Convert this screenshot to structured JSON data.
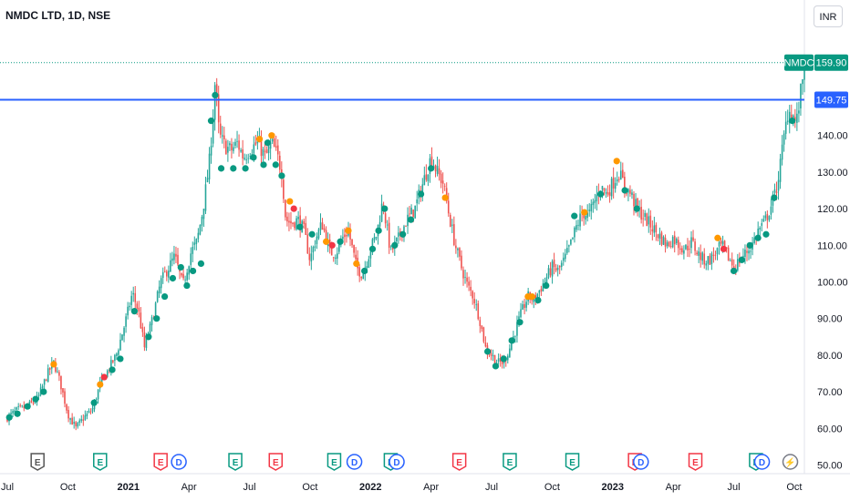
{
  "header": {
    "symbol_title": "NMDC LTD, 1D, NSE",
    "currency_button": "INR"
  },
  "colors": {
    "up": "#26a69a",
    "down": "#ef5350",
    "hline": "#2962ff",
    "price_tag": "#089981",
    "dot_green": "#089981",
    "dot_orange": "#ff9800",
    "dot_red": "#f23645",
    "earn_dark": "#555555",
    "earn_green": "#089981",
    "earn_red": "#f23645",
    "dividend": "#2962ff",
    "split": "#787b86"
  },
  "chart_data": {
    "type": "candlestick",
    "symbol": "NMDC",
    "interval": "1D",
    "exchange": "NSE",
    "currency": "INR",
    "ylim": [
      48,
      163
    ],
    "y_ticks": [
      "160.00",
      "150.00",
      "140.00",
      "130.00",
      "120.00",
      "110.00",
      "100.00",
      "90.00",
      "80.00",
      "70.00",
      "60.00",
      "50.00"
    ],
    "y_tick_values": [
      160,
      150,
      140,
      130,
      120,
      110,
      100,
      90,
      80,
      70,
      60,
      50
    ],
    "x_ticks": [
      {
        "label": "Jul",
        "t": 0.0,
        "year": false
      },
      {
        "label": "Oct",
        "t": 3.0,
        "year": false
      },
      {
        "label": "2021",
        "t": 6.0,
        "year": true
      },
      {
        "label": "Apr",
        "t": 9.0,
        "year": false
      },
      {
        "label": "Jul",
        "t": 12.0,
        "year": false
      },
      {
        "label": "Oct",
        "t": 15.0,
        "year": false
      },
      {
        "label": "2022",
        "t": 18.0,
        "year": true
      },
      {
        "label": "Apr",
        "t": 21.0,
        "year": false
      },
      {
        "label": "Jul",
        "t": 24.0,
        "year": false
      },
      {
        "label": "Oct",
        "t": 27.0,
        "year": false
      },
      {
        "label": "2023",
        "t": 30.0,
        "year": true
      },
      {
        "label": "Apr",
        "t": 33.0,
        "year": false
      },
      {
        "label": "Jul",
        "t": 36.0,
        "year": false
      },
      {
        "label": "Oct",
        "t": 39.0,
        "year": false
      }
    ],
    "t_range": [
      0.0,
      39.5
    ],
    "last_price": {
      "label": "NMDC",
      "value": "159.90",
      "num": 159.9
    },
    "horizontal_line": {
      "value": "149.75",
      "num": 149.75
    },
    "price_path": [
      [
        0.0,
        63
      ],
      [
        0.5,
        65
      ],
      [
        1.0,
        66
      ],
      [
        1.5,
        68
      ],
      [
        2.0,
        75
      ],
      [
        2.3,
        78
      ],
      [
        2.6,
        73
      ],
      [
        3.0,
        64
      ],
      [
        3.4,
        60
      ],
      [
        3.8,
        63
      ],
      [
        4.2,
        65
      ],
      [
        4.6,
        72
      ],
      [
        5.0,
        76
      ],
      [
        5.4,
        80
      ],
      [
        5.8,
        88
      ],
      [
        6.2,
        97
      ],
      [
        6.5,
        92
      ],
      [
        6.8,
        82
      ],
      [
        7.2,
        90
      ],
      [
        7.6,
        100
      ],
      [
        8.0,
        104
      ],
      [
        8.3,
        107
      ],
      [
        8.7,
        99
      ],
      [
        9.1,
        108
      ],
      [
        9.4,
        111
      ],
      [
        9.7,
        120
      ],
      [
        10.0,
        132
      ],
      [
        10.2,
        146
      ],
      [
        10.3,
        155
      ],
      [
        10.5,
        140
      ],
      [
        10.8,
        137
      ],
      [
        11.1,
        136
      ],
      [
        11.4,
        138
      ],
      [
        11.7,
        134
      ],
      [
        12.0,
        136
      ],
      [
        12.4,
        138
      ],
      [
        12.8,
        134
      ],
      [
        13.1,
        138
      ],
      [
        13.4,
        134
      ],
      [
        13.6,
        130
      ],
      [
        13.8,
        117
      ],
      [
        14.1,
        116
      ],
      [
        14.4,
        117
      ],
      [
        14.7,
        114
      ],
      [
        15.0,
        106
      ],
      [
        15.3,
        112
      ],
      [
        15.6,
        116
      ],
      [
        16.0,
        108
      ],
      [
        16.3,
        108
      ],
      [
        16.6,
        112
      ],
      [
        16.9,
        114
      ],
      [
        17.3,
        104
      ],
      [
        17.6,
        102
      ],
      [
        18.0,
        109
      ],
      [
        18.3,
        113
      ],
      [
        18.6,
        122
      ],
      [
        19.0,
        108
      ],
      [
        19.4,
        112
      ],
      [
        19.8,
        117
      ],
      [
        20.2,
        120
      ],
      [
        20.6,
        127
      ],
      [
        21.0,
        134
      ],
      [
        21.3,
        130
      ],
      [
        21.6,
        127
      ],
      [
        21.9,
        118
      ],
      [
        22.2,
        110
      ],
      [
        22.5,
        104
      ],
      [
        22.8,
        99
      ],
      [
        23.1,
        96
      ],
      [
        23.4,
        90
      ],
      [
        23.7,
        82
      ],
      [
        24.0,
        80
      ],
      [
        24.3,
        78
      ],
      [
        24.6,
        78
      ],
      [
        24.9,
        82
      ],
      [
        25.2,
        87
      ],
      [
        25.5,
        92
      ],
      [
        25.8,
        96
      ],
      [
        26.1,
        95
      ],
      [
        26.4,
        98
      ],
      [
        26.7,
        101
      ],
      [
        27.0,
        104
      ],
      [
        27.3,
        103
      ],
      [
        27.6,
        106
      ],
      [
        27.9,
        110
      ],
      [
        28.2,
        115
      ],
      [
        28.5,
        119
      ],
      [
        28.8,
        118
      ],
      [
        29.1,
        122
      ],
      [
        29.4,
        126
      ],
      [
        29.7,
        124
      ],
      [
        30.0,
        127
      ],
      [
        30.3,
        130
      ],
      [
        30.6,
        126
      ],
      [
        30.9,
        124
      ],
      [
        31.2,
        120
      ],
      [
        31.5,
        118
      ],
      [
        31.8,
        116
      ],
      [
        32.1,
        114
      ],
      [
        32.4,
        112
      ],
      [
        32.7,
        110
      ],
      [
        33.0,
        112
      ],
      [
        33.3,
        110
      ],
      [
        33.6,
        109
      ],
      [
        33.9,
        111
      ],
      [
        34.2,
        108
      ],
      [
        34.5,
        106
      ],
      [
        34.8,
        106
      ],
      [
        35.1,
        108
      ],
      [
        35.4,
        110
      ],
      [
        35.7,
        107
      ],
      [
        36.0,
        104
      ],
      [
        36.3,
        106
      ],
      [
        36.6,
        108
      ],
      [
        36.9,
        110
      ],
      [
        37.2,
        114
      ],
      [
        37.5,
        116
      ],
      [
        37.8,
        120
      ],
      [
        38.1,
        125
      ],
      [
        38.3,
        132
      ],
      [
        38.5,
        140
      ],
      [
        38.7,
        147
      ],
      [
        38.9,
        146
      ],
      [
        39.1,
        143
      ],
      [
        39.3,
        151
      ],
      [
        39.5,
        159.9
      ]
    ],
    "dots": [
      {
        "t": 0.1,
        "v": 63,
        "c": "green"
      },
      {
        "t": 0.5,
        "v": 64,
        "c": "green"
      },
      {
        "t": 1.0,
        "v": 66,
        "c": "green"
      },
      {
        "t": 1.4,
        "v": 68,
        "c": "green"
      },
      {
        "t": 1.8,
        "v": 70,
        "c": "green"
      },
      {
        "t": 2.3,
        "v": 77.5,
        "c": "orange"
      },
      {
        "t": 4.3,
        "v": 67,
        "c": "green"
      },
      {
        "t": 4.6,
        "v": 72,
        "c": "orange"
      },
      {
        "t": 4.8,
        "v": 74,
        "c": "red"
      },
      {
        "t": 5.2,
        "v": 76,
        "c": "green"
      },
      {
        "t": 5.6,
        "v": 79,
        "c": "green"
      },
      {
        "t": 6.3,
        "v": 92,
        "c": "green"
      },
      {
        "t": 7.0,
        "v": 85,
        "c": "green"
      },
      {
        "t": 7.4,
        "v": 90,
        "c": "green"
      },
      {
        "t": 7.8,
        "v": 96,
        "c": "green"
      },
      {
        "t": 8.2,
        "v": 101,
        "c": "green"
      },
      {
        "t": 8.6,
        "v": 104,
        "c": "green"
      },
      {
        "t": 8.9,
        "v": 99,
        "c": "green"
      },
      {
        "t": 9.2,
        "v": 103,
        "c": "green"
      },
      {
        "t": 9.6,
        "v": 105,
        "c": "green"
      },
      {
        "t": 10.1,
        "v": 144,
        "c": "green"
      },
      {
        "t": 10.3,
        "v": 151,
        "c": "green"
      },
      {
        "t": 10.6,
        "v": 131,
        "c": "green"
      },
      {
        "t": 11.2,
        "v": 131,
        "c": "green"
      },
      {
        "t": 11.8,
        "v": 131,
        "c": "green"
      },
      {
        "t": 12.2,
        "v": 134,
        "c": "green"
      },
      {
        "t": 12.5,
        "v": 139,
        "c": "orange"
      },
      {
        "t": 12.7,
        "v": 132,
        "c": "green"
      },
      {
        "t": 12.9,
        "v": 138,
        "c": "green"
      },
      {
        "t": 13.1,
        "v": 140,
        "c": "orange"
      },
      {
        "t": 13.3,
        "v": 132,
        "c": "green"
      },
      {
        "t": 13.6,
        "v": 129,
        "c": "green"
      },
      {
        "t": 14.0,
        "v": 122,
        "c": "orange"
      },
      {
        "t": 14.2,
        "v": 120,
        "c": "red"
      },
      {
        "t": 14.5,
        "v": 115,
        "c": "green"
      },
      {
        "t": 15.1,
        "v": 113,
        "c": "green"
      },
      {
        "t": 15.8,
        "v": 111,
        "c": "orange"
      },
      {
        "t": 16.1,
        "v": 110,
        "c": "red"
      },
      {
        "t": 16.5,
        "v": 111,
        "c": "green"
      },
      {
        "t": 16.9,
        "v": 114,
        "c": "orange"
      },
      {
        "t": 17.3,
        "v": 105,
        "c": "orange"
      },
      {
        "t": 17.7,
        "v": 103,
        "c": "green"
      },
      {
        "t": 18.1,
        "v": 109,
        "c": "green"
      },
      {
        "t": 18.4,
        "v": 114,
        "c": "green"
      },
      {
        "t": 18.7,
        "v": 120,
        "c": "green"
      },
      {
        "t": 19.2,
        "v": 110,
        "c": "green"
      },
      {
        "t": 19.6,
        "v": 113,
        "c": "green"
      },
      {
        "t": 20.0,
        "v": 117,
        "c": "green"
      },
      {
        "t": 20.5,
        "v": 124,
        "c": "green"
      },
      {
        "t": 21.0,
        "v": 131,
        "c": "green"
      },
      {
        "t": 21.7,
        "v": 123,
        "c": "orange"
      },
      {
        "t": 23.8,
        "v": 81,
        "c": "green"
      },
      {
        "t": 24.2,
        "v": 77,
        "c": "green"
      },
      {
        "t": 24.6,
        "v": 79,
        "c": "green"
      },
      {
        "t": 25.0,
        "v": 84,
        "c": "green"
      },
      {
        "t": 25.4,
        "v": 89,
        "c": "green"
      },
      {
        "t": 25.8,
        "v": 96,
        "c": "orange"
      },
      {
        "t": 26.0,
        "v": 96,
        "c": "orange"
      },
      {
        "t": 26.3,
        "v": 95,
        "c": "green"
      },
      {
        "t": 26.7,
        "v": 99,
        "c": "green"
      },
      {
        "t": 28.1,
        "v": 118,
        "c": "green"
      },
      {
        "t": 28.6,
        "v": 119,
        "c": "orange"
      },
      {
        "t": 29.4,
        "v": 124,
        "c": "green"
      },
      {
        "t": 30.2,
        "v": 133,
        "c": "orange"
      },
      {
        "t": 30.6,
        "v": 125,
        "c": "green"
      },
      {
        "t": 31.2,
        "v": 120,
        "c": "green"
      },
      {
        "t": 35.2,
        "v": 112,
        "c": "orange"
      },
      {
        "t": 35.5,
        "v": 109,
        "c": "red"
      },
      {
        "t": 36.0,
        "v": 103,
        "c": "green"
      },
      {
        "t": 36.4,
        "v": 106,
        "c": "green"
      },
      {
        "t": 36.8,
        "v": 110,
        "c": "green"
      },
      {
        "t": 37.2,
        "v": 112,
        "c": "green"
      },
      {
        "t": 37.6,
        "v": 113,
        "c": "green"
      },
      {
        "t": 38.0,
        "v": 123,
        "c": "green"
      },
      {
        "t": 38.9,
        "v": 144,
        "c": "green"
      }
    ],
    "events": [
      {
        "label": "E",
        "t": 1.5,
        "kind": "earn_dark"
      },
      {
        "label": "E",
        "t": 4.6,
        "kind": "earn_green"
      },
      {
        "label": "E",
        "t": 7.6,
        "kind": "earn_red"
      },
      {
        "label": "D",
        "t": 8.5,
        "kind": "dividend"
      },
      {
        "label": "E",
        "t": 11.3,
        "kind": "earn_green"
      },
      {
        "label": "E",
        "t": 13.3,
        "kind": "earn_red"
      },
      {
        "label": "E",
        "t": 16.2,
        "kind": "earn_green"
      },
      {
        "label": "D",
        "t": 17.2,
        "kind": "dividend"
      },
      {
        "label": "E",
        "t": 19.0,
        "kind": "earn_green"
      },
      {
        "label": "D",
        "t": 19.3,
        "kind": "dividend"
      },
      {
        "label": "E",
        "t": 22.4,
        "kind": "earn_red"
      },
      {
        "label": "E",
        "t": 24.9,
        "kind": "earn_green"
      },
      {
        "label": "E",
        "t": 28.0,
        "kind": "earn_green"
      },
      {
        "label": "E",
        "t": 31.1,
        "kind": "earn_red"
      },
      {
        "label": "D",
        "t": 31.4,
        "kind": "dividend"
      },
      {
        "label": "E",
        "t": 34.1,
        "kind": "earn_red"
      },
      {
        "label": "E",
        "t": 37.1,
        "kind": "earn_green"
      },
      {
        "label": "D",
        "t": 37.4,
        "kind": "dividend"
      },
      {
        "label": "⚡",
        "t": 38.8,
        "kind": "split"
      }
    ]
  }
}
